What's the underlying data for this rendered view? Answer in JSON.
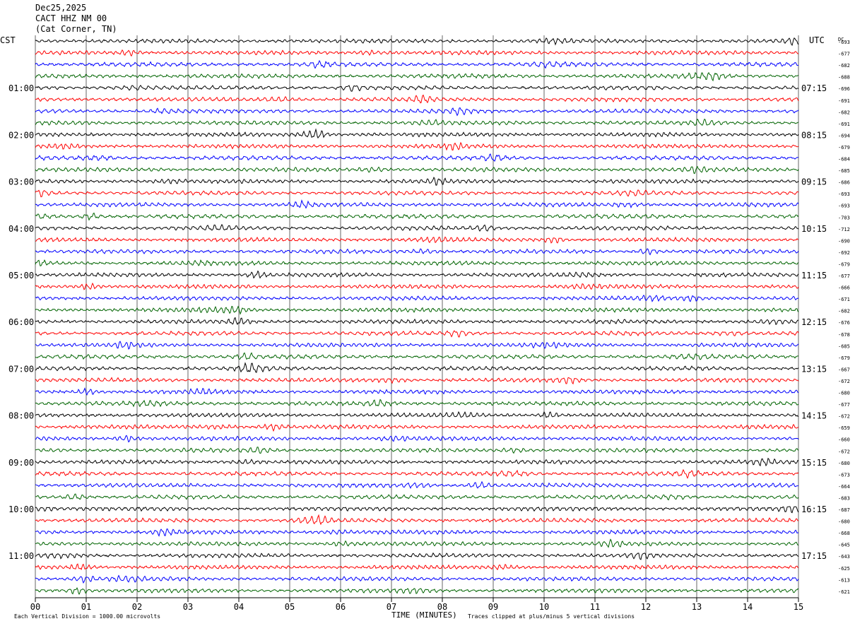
{
  "header": {
    "date": "Dec25,2025",
    "station": "CACT HHZ NM 00",
    "location": "(Cat Corner, TN)"
  },
  "left_tz": "CST",
  "right_tz": "UTC",
  "dc_label": "DC",
  "footer": {
    "left": "Each Vertical Division = 1000.00 microvolts",
    "center": "TIME (MINUTES)",
    "right": "Traces clipped at plus/minus 5 vertical divisions"
  },
  "colors": {
    "cycle": [
      "#000000",
      "#ff0000",
      "#0000ff",
      "#006400"
    ],
    "grid": "#000000"
  },
  "chart_data": {
    "type": "line",
    "title": "",
    "xlabel": "TIME (MINUTES)",
    "xlim": [
      0,
      15
    ],
    "x_ticks": [
      "00",
      "01",
      "02",
      "03",
      "04",
      "05",
      "06",
      "07",
      "08",
      "09",
      "10",
      "11",
      "12",
      "13",
      "14",
      "15"
    ],
    "trace_count": 48,
    "hour_labels_left": [
      "01:00",
      "02:00",
      "03:00",
      "04:00",
      "05:00",
      "06:00",
      "07:00",
      "08:00",
      "09:00",
      "10:00",
      "11:00"
    ],
    "hour_labels_right": [
      "07:15",
      "08:15",
      "09:15",
      "10:15",
      "11:15",
      "12:15",
      "13:15",
      "14:15",
      "15:15",
      "16:15",
      "17:15"
    ],
    "dc_offsets": [
      -693,
      -677,
      -682,
      -688,
      -696,
      -691,
      -682,
      -691,
      -694,
      -679,
      -684,
      -685,
      -686,
      -693,
      -693,
      -703,
      -712,
      -690,
      -692,
      -679,
      -677,
      -666,
      -671,
      -682,
      -676,
      -678,
      -685,
      -679,
      -667,
      -672,
      -680,
      -677,
      -672,
      -659,
      -660,
      -672,
      -680,
      -673,
      -664,
      -683,
      -687,
      -680,
      -668,
      -645,
      -643,
      -625,
      -613,
      -621
    ]
  }
}
